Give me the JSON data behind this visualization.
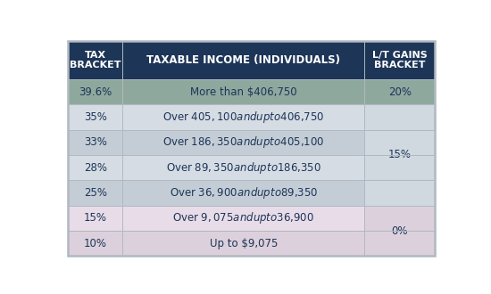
{
  "header": [
    "TAX\nBRACKET",
    "TAXABLE INCOME (INDIVIDUALS)",
    "L/T GAINS\nBRACKET"
  ],
  "rows": [
    {
      "tax": "39.6%",
      "income": "More than $406,750"
    },
    {
      "tax": "35%",
      "income": "Over $405,100 and up to $406,750"
    },
    {
      "tax": "33%",
      "income": "Over $186,350 and up to $405,100"
    },
    {
      "tax": "28%",
      "income": "Over $89,350 and up to $186,350"
    },
    {
      "tax": "25%",
      "income": "Over $36,900 and up to $89,350"
    },
    {
      "tax": "15%",
      "income": "Over $9,075 and up to $36,900"
    },
    {
      "tax": "10%",
      "income": "Up to $9,075"
    }
  ],
  "header_bg": "#1d3557",
  "header_fg": "#ffffff",
  "row0_bg": "#8fa89e",
  "row0_fg": "#1d3557",
  "row1_bg": "#d6dce4",
  "row2_bg": "#c4cdd6",
  "row3_bg": "#d6dce4",
  "row4_bg": "#c4cdd6",
  "row5_bg": "#e8dce8",
  "row6_bg": "#ddd0dd",
  "row_fg": "#1d3557",
  "gains_20_bg": "#8fa89e",
  "gains_20_fg": "#1d3557",
  "gains_15_bg": "#d0d8e0",
  "gains_15_fg": "#1d3557",
  "gains_0_bg": "#ddd0dd",
  "gains_0_fg": "#1d3557",
  "border_color": "#b0b8c0",
  "outer_border_color": "#b0b8c0"
}
